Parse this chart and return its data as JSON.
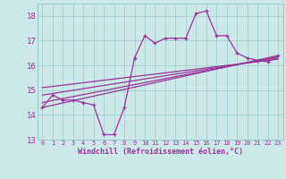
{
  "xlabel": "Windchill (Refroidissement éolien,°C)",
  "background_color": "#cce8e8",
  "line_color": "#993399",
  "grid_color": "#99cccc",
  "xlim": [
    -0.5,
    23.5
  ],
  "ylim": [
    13.0,
    18.5
  ],
  "yticks": [
    13,
    14,
    15,
    16,
    17,
    18
  ],
  "xticks": [
    0,
    1,
    2,
    3,
    4,
    5,
    6,
    7,
    8,
    9,
    10,
    11,
    12,
    13,
    14,
    15,
    16,
    17,
    18,
    19,
    20,
    21,
    22,
    23
  ],
  "main_line": {
    "x": [
      0,
      1,
      2,
      3,
      4,
      5,
      6,
      7,
      8,
      9,
      10,
      11,
      12,
      13,
      14,
      15,
      16,
      17,
      18,
      19,
      20,
      21,
      22,
      23
    ],
    "y": [
      14.3,
      14.8,
      14.6,
      14.6,
      14.5,
      14.4,
      13.2,
      13.2,
      14.3,
      16.3,
      17.2,
      16.9,
      17.1,
      17.1,
      17.1,
      18.1,
      18.2,
      17.2,
      17.2,
      16.5,
      16.3,
      16.2,
      16.15,
      16.4
    ]
  },
  "trend_lines": [
    {
      "x": [
        0,
        23
      ],
      "y": [
        14.3,
        16.4
      ]
    },
    {
      "x": [
        0,
        23
      ],
      "y": [
        14.5,
        16.35
      ]
    },
    {
      "x": [
        0,
        23
      ],
      "y": [
        14.8,
        16.3
      ]
    },
    {
      "x": [
        0,
        23
      ],
      "y": [
        15.1,
        16.25
      ]
    }
  ]
}
